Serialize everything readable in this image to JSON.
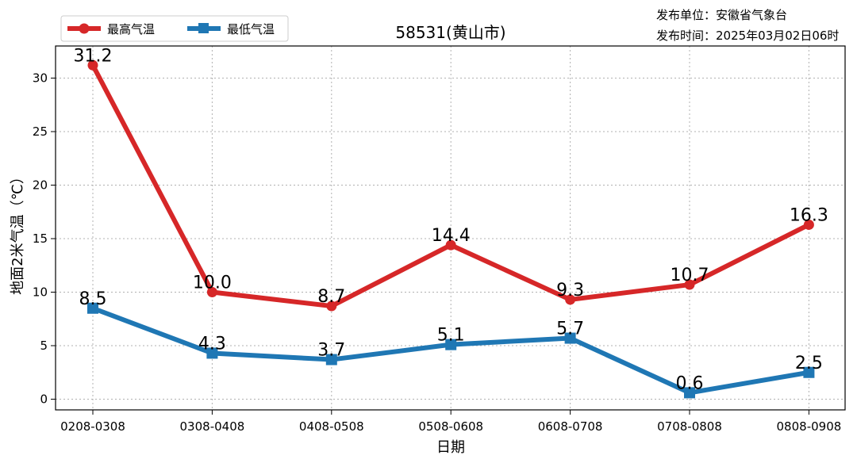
{
  "chart_data": {
    "type": "line",
    "title": "58531(黄山市)",
    "publisher": "发布单位：安徽省气象台",
    "publish_time": "发布时间：2025年03月02日06时",
    "xlabel": "日期",
    "ylabel": "地面2米气温（℃）",
    "categories": [
      "0208-0308",
      "0308-0408",
      "0408-0508",
      "0508-0608",
      "0608-0708",
      "0708-0808",
      "0808-0908"
    ],
    "ylim": [
      -1,
      33
    ],
    "yticks": [
      0,
      5,
      10,
      15,
      20,
      25,
      30
    ],
    "grid": true,
    "legend_position": "top-left",
    "series": [
      {
        "name": "最高气温",
        "color": "#d62728",
        "marker": "circle",
        "values": [
          31.2,
          10.0,
          8.7,
          14.4,
          9.3,
          10.7,
          16.3
        ],
        "labels": [
          "31.2",
          "10.0",
          "8.7",
          "14.4",
          "9.3",
          "10.7",
          "16.3"
        ]
      },
      {
        "name": "最低气温",
        "color": "#1f77b4",
        "marker": "square",
        "values": [
          8.5,
          4.3,
          3.7,
          5.1,
          5.7,
          0.6,
          2.5
        ],
        "labels": [
          "8.5",
          "4.3",
          "3.7",
          "5.1",
          "5.7",
          "0.6",
          "2.5"
        ]
      }
    ]
  }
}
